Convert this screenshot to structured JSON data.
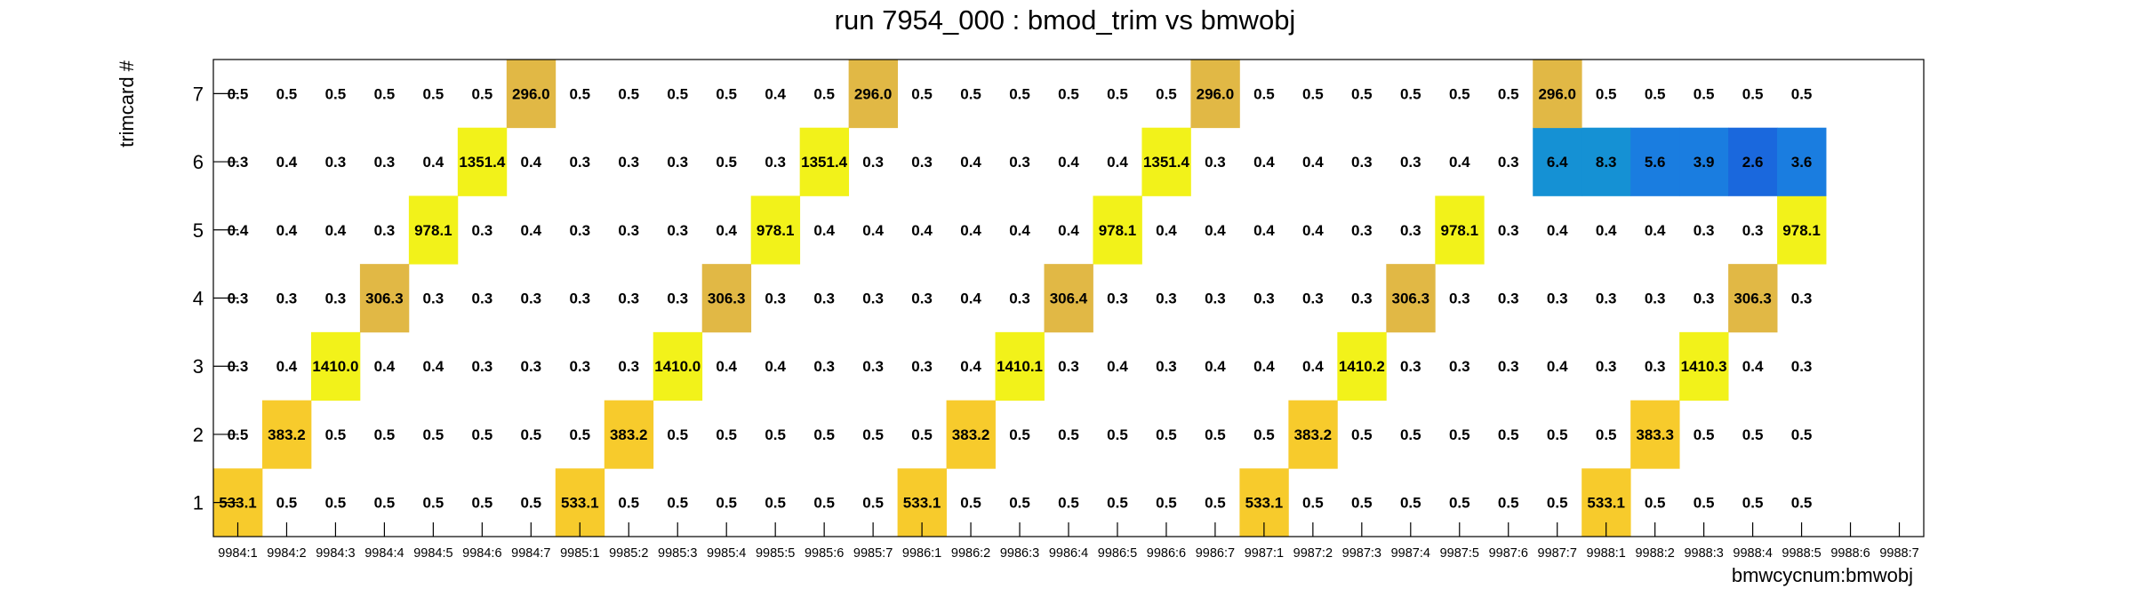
{
  "chart_data": {
    "type": "heatmap",
    "title": "run 7954_000 : bmod_trim vs bmwobj",
    "xlabel": "bmwcycnum:bmwobj",
    "ylabel": "trimcard #",
    "categories": [
      "9984:1",
      "9984:2",
      "9984:3",
      "9984:4",
      "9984:5",
      "9984:6",
      "9984:7",
      "9985:1",
      "9985:2",
      "9985:3",
      "9985:4",
      "9985:5",
      "9985:6",
      "9985:7",
      "9986:1",
      "9986:2",
      "9986:3",
      "9986:4",
      "9986:5",
      "9986:6",
      "9986:7",
      "9987:1",
      "9987:2",
      "9987:3",
      "9987:4",
      "9987:5",
      "9987:6",
      "9987:7",
      "9988:1",
      "9988:2",
      "9988:3",
      "9988:4",
      "9988:5",
      "9988:6",
      "9988:7"
    ],
    "y_categories": [
      "1",
      "2",
      "3",
      "4",
      "5",
      "6",
      "7"
    ],
    "series": [
      {
        "name": "1",
        "values": [
          533.1,
          0.5,
          0.5,
          0.5,
          0.5,
          0.5,
          0.5,
          533.1,
          0.5,
          0.5,
          0.5,
          0.5,
          0.5,
          0.5,
          533.1,
          0.5,
          0.5,
          0.5,
          0.5,
          0.5,
          0.5,
          533.1,
          0.5,
          0.5,
          0.5,
          0.5,
          0.5,
          0.5,
          533.1,
          0.5,
          0.5,
          0.5,
          0.5,
          null,
          null
        ]
      },
      {
        "name": "2",
        "values": [
          0.5,
          383.2,
          0.5,
          0.5,
          0.5,
          0.5,
          0.5,
          0.5,
          383.2,
          0.5,
          0.5,
          0.5,
          0.5,
          0.5,
          0.5,
          383.2,
          0.5,
          0.5,
          0.5,
          0.5,
          0.5,
          0.5,
          383.2,
          0.5,
          0.5,
          0.5,
          0.5,
          0.5,
          0.5,
          383.3,
          0.5,
          0.5,
          0.5,
          null,
          null
        ]
      },
      {
        "name": "3",
        "values": [
          0.3,
          0.4,
          1410.0,
          0.4,
          0.4,
          0.3,
          0.3,
          0.3,
          0.3,
          1410.0,
          0.4,
          0.4,
          0.3,
          0.3,
          0.3,
          0.4,
          1410.1,
          0.3,
          0.4,
          0.3,
          0.4,
          0.4,
          0.4,
          1410.2,
          0.3,
          0.3,
          0.3,
          0.4,
          0.3,
          0.3,
          1410.3,
          0.4,
          0.3,
          null,
          null
        ]
      },
      {
        "name": "4",
        "values": [
          0.3,
          0.3,
          0.3,
          306.3,
          0.3,
          0.3,
          0.3,
          0.3,
          0.3,
          0.3,
          306.3,
          0.3,
          0.3,
          0.3,
          0.3,
          0.4,
          0.3,
          306.4,
          0.3,
          0.3,
          0.3,
          0.3,
          0.3,
          0.3,
          306.3,
          0.3,
          0.3,
          0.3,
          0.3,
          0.3,
          0.3,
          306.3,
          0.3,
          null,
          null
        ]
      },
      {
        "name": "5",
        "values": [
          0.4,
          0.4,
          0.4,
          0.3,
          978.1,
          0.3,
          0.4,
          0.3,
          0.3,
          0.3,
          0.4,
          978.1,
          0.4,
          0.4,
          0.4,
          0.4,
          0.4,
          0.4,
          978.1,
          0.4,
          0.4,
          0.4,
          0.4,
          0.3,
          0.3,
          978.1,
          0.3,
          0.4,
          0.4,
          0.4,
          0.3,
          0.3,
          978.1,
          null,
          null
        ]
      },
      {
        "name": "6",
        "values": [
          0.3,
          0.4,
          0.3,
          0.3,
          0.4,
          1351.4,
          0.4,
          0.3,
          0.3,
          0.3,
          0.5,
          0.3,
          1351.4,
          0.3,
          0.3,
          0.4,
          0.3,
          0.4,
          0.4,
          1351.4,
          0.3,
          0.4,
          0.4,
          0.3,
          0.3,
          0.4,
          0.3,
          6.4,
          8.3,
          5.6,
          3.9,
          2.6,
          3.6,
          null,
          null
        ]
      },
      {
        "name": "7",
        "values": [
          0.5,
          0.5,
          0.5,
          0.5,
          0.5,
          0.5,
          296.0,
          0.5,
          0.5,
          0.5,
          0.5,
          0.4,
          0.5,
          296.0,
          0.5,
          0.5,
          0.5,
          0.5,
          0.5,
          0.5,
          296.0,
          0.5,
          0.5,
          0.5,
          0.5,
          0.5,
          0.5,
          296.0,
          0.5,
          0.5,
          0.5,
          0.5,
          0.5,
          null,
          null
        ]
      }
    ],
    "colors": {
      "high_yellow": "#f2f21a",
      "gold": "#f7cb2c",
      "dark_gold": "#e1b845",
      "blue_light": "#1591d4",
      "blue_mid": "#1a7de0",
      "blue_dark": "#1a68dd"
    },
    "grid": false,
    "legend": "none"
  }
}
